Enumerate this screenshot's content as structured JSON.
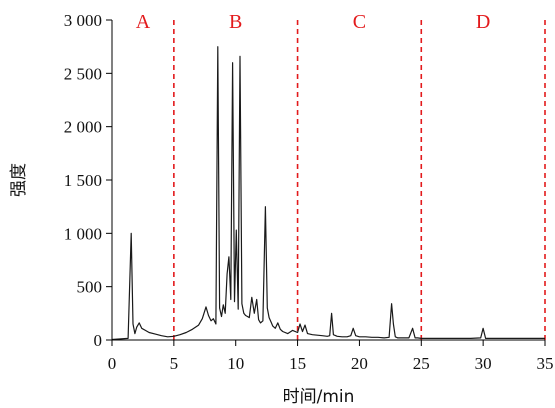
{
  "chart_data": {
    "type": "line",
    "title": "",
    "xlabel": "时间/min",
    "ylabel": "强度",
    "xlim": [
      0,
      35
    ],
    "ylim": [
      0,
      3000
    ],
    "x_ticks": [
      0,
      5,
      10,
      15,
      20,
      25,
      30,
      35
    ],
    "x_tick_labels": [
      "0",
      "5",
      "10",
      "15",
      "20",
      "25",
      "30",
      "35"
    ],
    "y_ticks": [
      0,
      500,
      1000,
      1500,
      2000,
      2500,
      3000
    ],
    "y_tick_labels": [
      "0",
      "500",
      "1 000",
      "1 500",
      "2 000",
      "2 500",
      "3 000"
    ],
    "grid": false,
    "line_color": "#1a1a1a",
    "region_line_color": "#e31a1c",
    "region_boundaries": [
      5,
      15,
      25,
      35
    ],
    "regions": [
      {
        "label": "A",
        "x": 2.5
      },
      {
        "label": "B",
        "x": 10
      },
      {
        "label": "C",
        "x": 20
      },
      {
        "label": "D",
        "x": 30
      }
    ],
    "series": [
      {
        "x": [
          0,
          1.3,
          1.55,
          1.7,
          1.85,
          2.0,
          2.2,
          2.4,
          2.7,
          3.0,
          3.5,
          4.0,
          4.5,
          5.0,
          5.5,
          6.0,
          6.5,
          7.0,
          7.3,
          7.6,
          7.8,
          8.0,
          8.2,
          8.4,
          8.55,
          8.7,
          8.85,
          9.0,
          9.15,
          9.3,
          9.45,
          9.6,
          9.75,
          9.9,
          10.05,
          10.2,
          10.35,
          10.5,
          10.65,
          10.8,
          10.95,
          11.1,
          11.3,
          11.5,
          11.7,
          11.85,
          12.0,
          12.2,
          12.4,
          12.55,
          12.7,
          12.85,
          13.0,
          13.2,
          13.4,
          13.6,
          13.8,
          14.2,
          14.6,
          15.0,
          15.2,
          15.4,
          15.6,
          15.8,
          16.2,
          16.6,
          17.0,
          17.4,
          17.6,
          17.75,
          17.9,
          18.2,
          18.6,
          19.0,
          19.3,
          19.5,
          19.7,
          20.0,
          20.5,
          21.0,
          21.5,
          22.0,
          22.4,
          22.6,
          22.75,
          22.9,
          23.1,
          23.5,
          24.0,
          24.3,
          24.5,
          24.7,
          25.0,
          26.0,
          27.0,
          28.0,
          29.0,
          29.8,
          30.0,
          30.2,
          31.0,
          32.0,
          33.0,
          34.0,
          35.0
        ],
        "values": [
          5,
          15,
          1000,
          150,
          60,
          120,
          160,
          110,
          90,
          70,
          55,
          40,
          30,
          35,
          50,
          70,
          100,
          140,
          200,
          310,
          230,
          180,
          200,
          150,
          2750,
          300,
          220,
          330,
          250,
          620,
          780,
          380,
          2600,
          360,
          1030,
          290,
          2660,
          340,
          250,
          230,
          220,
          210,
          400,
          250,
          380,
          190,
          160,
          180,
          1250,
          300,
          210,
          170,
          130,
          110,
          160,
          100,
          80,
          60,
          90,
          70,
          150,
          80,
          140,
          60,
          50,
          45,
          40,
          35,
          40,
          250,
          50,
          35,
          30,
          30,
          40,
          110,
          40,
          30,
          30,
          25,
          25,
          20,
          25,
          340,
          150,
          30,
          20,
          20,
          20,
          110,
          20,
          20,
          15,
          15,
          15,
          15,
          15,
          20,
          110,
          15,
          15,
          15,
          15,
          15,
          15
        ]
      }
    ]
  }
}
